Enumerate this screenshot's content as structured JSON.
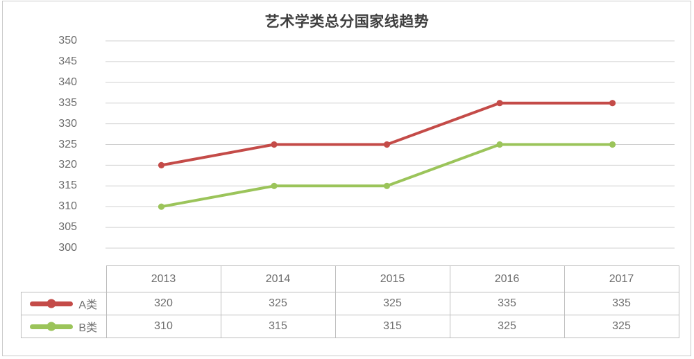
{
  "chart_data": {
    "type": "line",
    "title": "艺术学类总分国家线趋势",
    "categories": [
      "2013",
      "2014",
      "2015",
      "2016",
      "2017"
    ],
    "series": [
      {
        "name": "A类",
        "color": "#C44B48",
        "values": [
          320,
          325,
          325,
          335,
          335
        ]
      },
      {
        "name": "B类",
        "color": "#9BC45A",
        "values": [
          310,
          315,
          315,
          325,
          325
        ]
      }
    ],
    "xlabel": "",
    "ylabel": "",
    "ylim": [
      300,
      350
    ],
    "yticks": [
      350,
      345,
      340,
      335,
      330,
      325,
      320,
      315,
      310,
      305,
      300
    ],
    "grid": true,
    "legend_position": "table-left"
  },
  "colors": {
    "grid": "#D0D0D0",
    "table_border": "#BDBDBD",
    "frame_border": "#C9C9C9",
    "title_text": "#3F3F3F",
    "axis_text": "#6E6E6E",
    "table_text": "#6E6E6E",
    "background": "#FFFFFF"
  }
}
